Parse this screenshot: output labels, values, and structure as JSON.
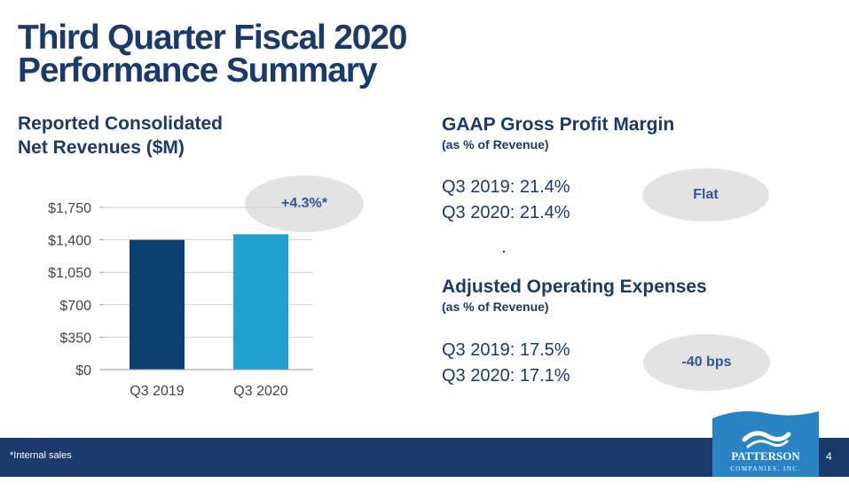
{
  "slide": {
    "title_line1": "Third Quarter Fiscal 2020",
    "title_line2": "Performance Summary",
    "page_number": "4",
    "footnote": "*Internal sales"
  },
  "revenue_section": {
    "heading_line1": "Reported Consolidated",
    "heading_line2": "Net Revenues ($M)",
    "growth_callout": "+4.3%*"
  },
  "gross_margin": {
    "heading": "GAAP Gross Profit Margin",
    "subheading": "(as % of Revenue)",
    "q3_2019": "Q3 2019: 21.4%",
    "q3_2020": "Q3 2020: 21.4%",
    "callout": "Flat"
  },
  "operating_expenses": {
    "heading": "Adjusted Operating Expenses",
    "subheading": "(as % of Revenue)",
    "q3_2019": "Q3 2019: 17.5%",
    "q3_2020": "Q3 2020: 17.1%",
    "callout": "-40 bps"
  },
  "logo": {
    "name": "PATTERSON",
    "tagline": "COMPANIES, INC."
  },
  "colors": {
    "navy": "#1b3a6b",
    "bar_2019": "#0e3f73",
    "bar_2020": "#21a0d2",
    "callout_bg": "#e3e3e3"
  },
  "chart_data": {
    "type": "bar",
    "title": "",
    "xlabel": "",
    "ylabel": "",
    "categories": [
      "Q3 2019",
      "Q3 2020"
    ],
    "values": [
      1400,
      1460
    ],
    "ylim": [
      0,
      1750
    ],
    "yticks": [
      0,
      350,
      700,
      1050,
      1400,
      1750
    ],
    "ytick_labels": [
      "$0",
      "$350",
      "$700",
      "$1,050",
      "$1,400",
      "$1,750"
    ],
    "grid": true,
    "legend": "none"
  }
}
